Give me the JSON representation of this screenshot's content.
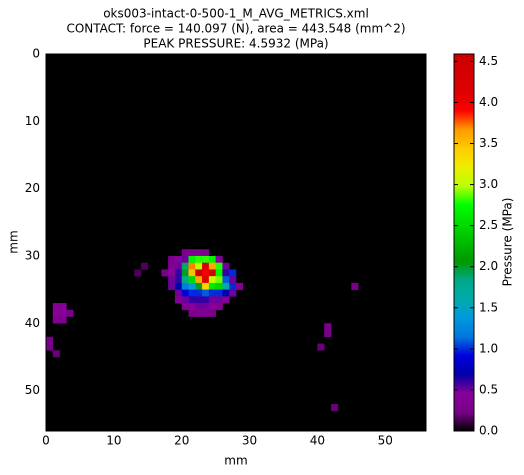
{
  "chart_data": {
    "type": "heatmap",
    "title": "oks003-intact-0-500-1_M_AVG_METRICS.xml",
    "subtitle": "CONTACT: force = 140.097 (N), area = 443.548 (mm^2)",
    "subtitle2": "PEAK PRESSURE: 4.5932 (MPa)",
    "x_label": "mm",
    "y_label": "mm",
    "colorbar_label": "Pressure (MPa)",
    "xlim": [
      0,
      56
    ],
    "ylim": [
      56,
      0
    ],
    "xticks": [
      0,
      10,
      20,
      30,
      40,
      50
    ],
    "yticks": [
      0,
      10,
      20,
      30,
      40,
      50
    ],
    "clim": [
      0,
      4.59
    ],
    "cticks": [
      {
        "value": 0,
        "label": "0.0"
      },
      {
        "value": 0.5,
        "label": "0.5"
      },
      {
        "value": 1,
        "label": "1.0"
      },
      {
        "value": 1.5,
        "label": "1.5"
      },
      {
        "value": 2,
        "label": "2.0"
      },
      {
        "value": 2.5,
        "label": "2.5"
      },
      {
        "value": 3,
        "label": "3.0"
      },
      {
        "value": 3.5,
        "label": "3.5"
      },
      {
        "value": 4,
        "label": "4.0"
      },
      {
        "value": 4.5,
        "label": "4.5"
      }
    ],
    "colormap": "nipy_spectral",
    "x": [
      20,
      21,
      22,
      23,
      18,
      19,
      20,
      21,
      22,
      23,
      24,
      25,
      18,
      19,
      20,
      21,
      22,
      23,
      24,
      25,
      26,
      17,
      18,
      19,
      20,
      21,
      22,
      23,
      24,
      25,
      26,
      27,
      18,
      19,
      20,
      21,
      22,
      23,
      24,
      25,
      26,
      27,
      18,
      19,
      20,
      21,
      22,
      23,
      24,
      25,
      26,
      27,
      28,
      19,
      20,
      21,
      22,
      23,
      24,
      25,
      26,
      27,
      19,
      20,
      21,
      22,
      23,
      24,
      25,
      26,
      20,
      21,
      22,
      23,
      24,
      25,
      21,
      22,
      23,
      24,
      1,
      2,
      1,
      2,
      3,
      1,
      2,
      0,
      0,
      1,
      41,
      41,
      40,
      45,
      42,
      14,
      13
    ],
    "y": [
      29,
      29,
      29,
      29,
      30,
      30,
      30,
      30,
      30,
      30,
      30,
      30,
      31,
      31,
      31,
      31,
      31,
      31,
      31,
      31,
      31,
      32,
      32,
      32,
      32,
      32,
      32,
      32,
      32,
      32,
      32,
      32,
      33,
      33,
      33,
      33,
      33,
      33,
      33,
      33,
      33,
      33,
      34,
      34,
      34,
      34,
      34,
      34,
      34,
      34,
      34,
      34,
      34,
      35,
      35,
      35,
      35,
      35,
      35,
      35,
      35,
      35,
      36,
      36,
      36,
      36,
      36,
      36,
      36,
      36,
      37,
      37,
      37,
      37,
      37,
      37,
      38,
      38,
      38,
      38,
      37,
      37,
      38,
      38,
      38,
      39,
      39,
      42,
      43,
      44,
      40,
      41,
      43,
      34,
      52,
      31,
      32
    ],
    "values": [
      0.3,
      0.35,
      0.35,
      0.3,
      0.3,
      0.45,
      0.5,
      2.7,
      2.8,
      2.8,
      2.7,
      0.4,
      0.4,
      0.5,
      1.9,
      3.7,
      3.0,
      4.2,
      3.6,
      2.8,
      0.5,
      0.3,
      0.45,
      0.6,
      2.0,
      3.5,
      4.59,
      4.0,
      4.4,
      2.7,
      0.6,
      1.0,
      0.5,
      0.6,
      1.8,
      2.5,
      3.6,
      4.1,
      3.0,
      2.9,
      1.1,
      0.5,
      0.5,
      0.7,
      1.2,
      1.4,
      2.0,
      3.4,
      2.6,
      2.5,
      1.6,
      1.0,
      0.4,
      0.5,
      0.9,
      1.0,
      1.0,
      1.1,
      1.0,
      1.0,
      0.7,
      0.5,
      0.4,
      0.5,
      0.6,
      0.6,
      0.6,
      0.5,
      0.5,
      0.4,
      0.4,
      0.45,
      0.5,
      0.5,
      0.45,
      0.4,
      0.3,
      0.35,
      0.35,
      0.3,
      0.4,
      0.4,
      0.45,
      0.45,
      0.3,
      0.35,
      0.3,
      0.25,
      0.25,
      0.2,
      0.3,
      0.25,
      0.2,
      0.3,
      0.2,
      0.15,
      0.15
    ]
  }
}
